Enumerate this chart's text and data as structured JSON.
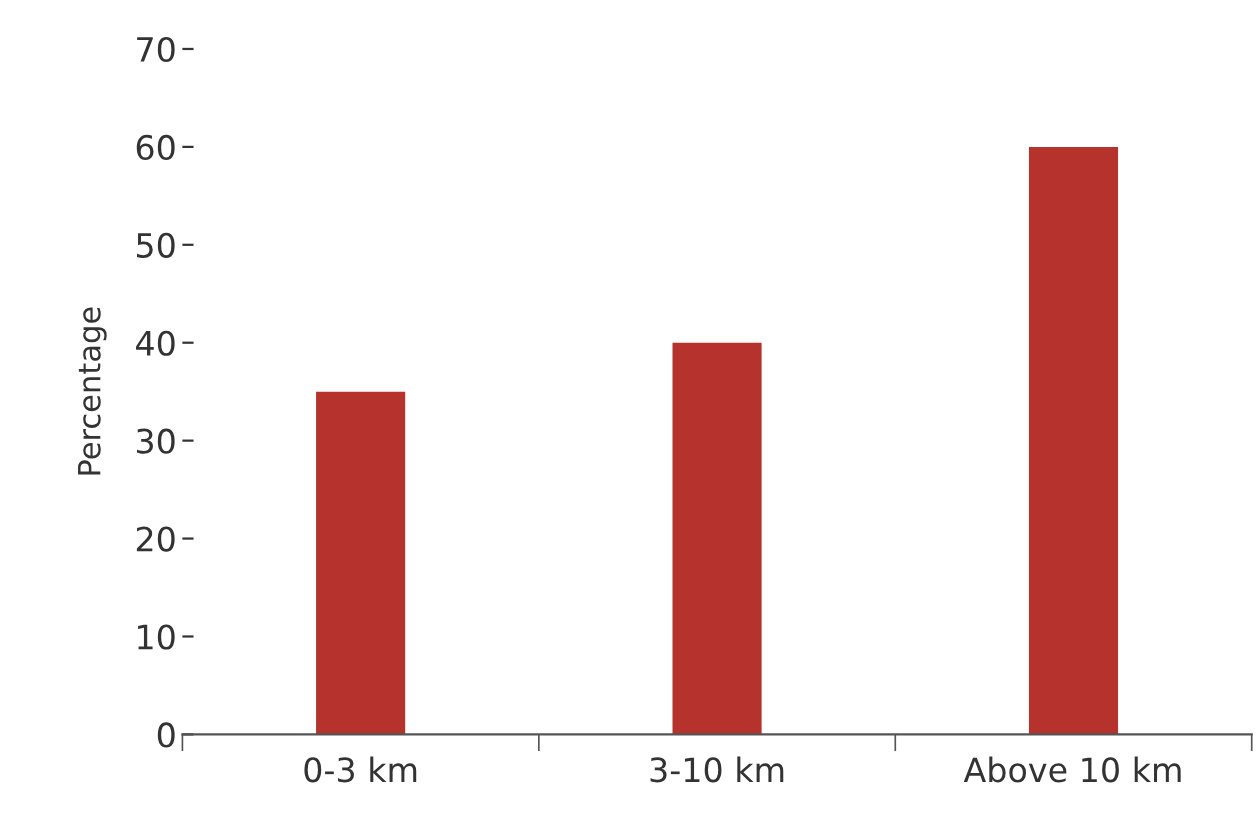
{
  "chart_data": {
    "type": "bar",
    "ylabel": "Percentage",
    "categories": [
      "0-3 km",
      "3-10 km",
      "Above 10 km"
    ],
    "values": [
      35,
      40,
      60
    ],
    "color": "#b5332c",
    "ylim": [
      0,
      70
    ],
    "yticks": [
      0,
      10,
      20,
      30,
      40,
      50,
      60,
      70
    ],
    "grid": false,
    "legend": false
  }
}
